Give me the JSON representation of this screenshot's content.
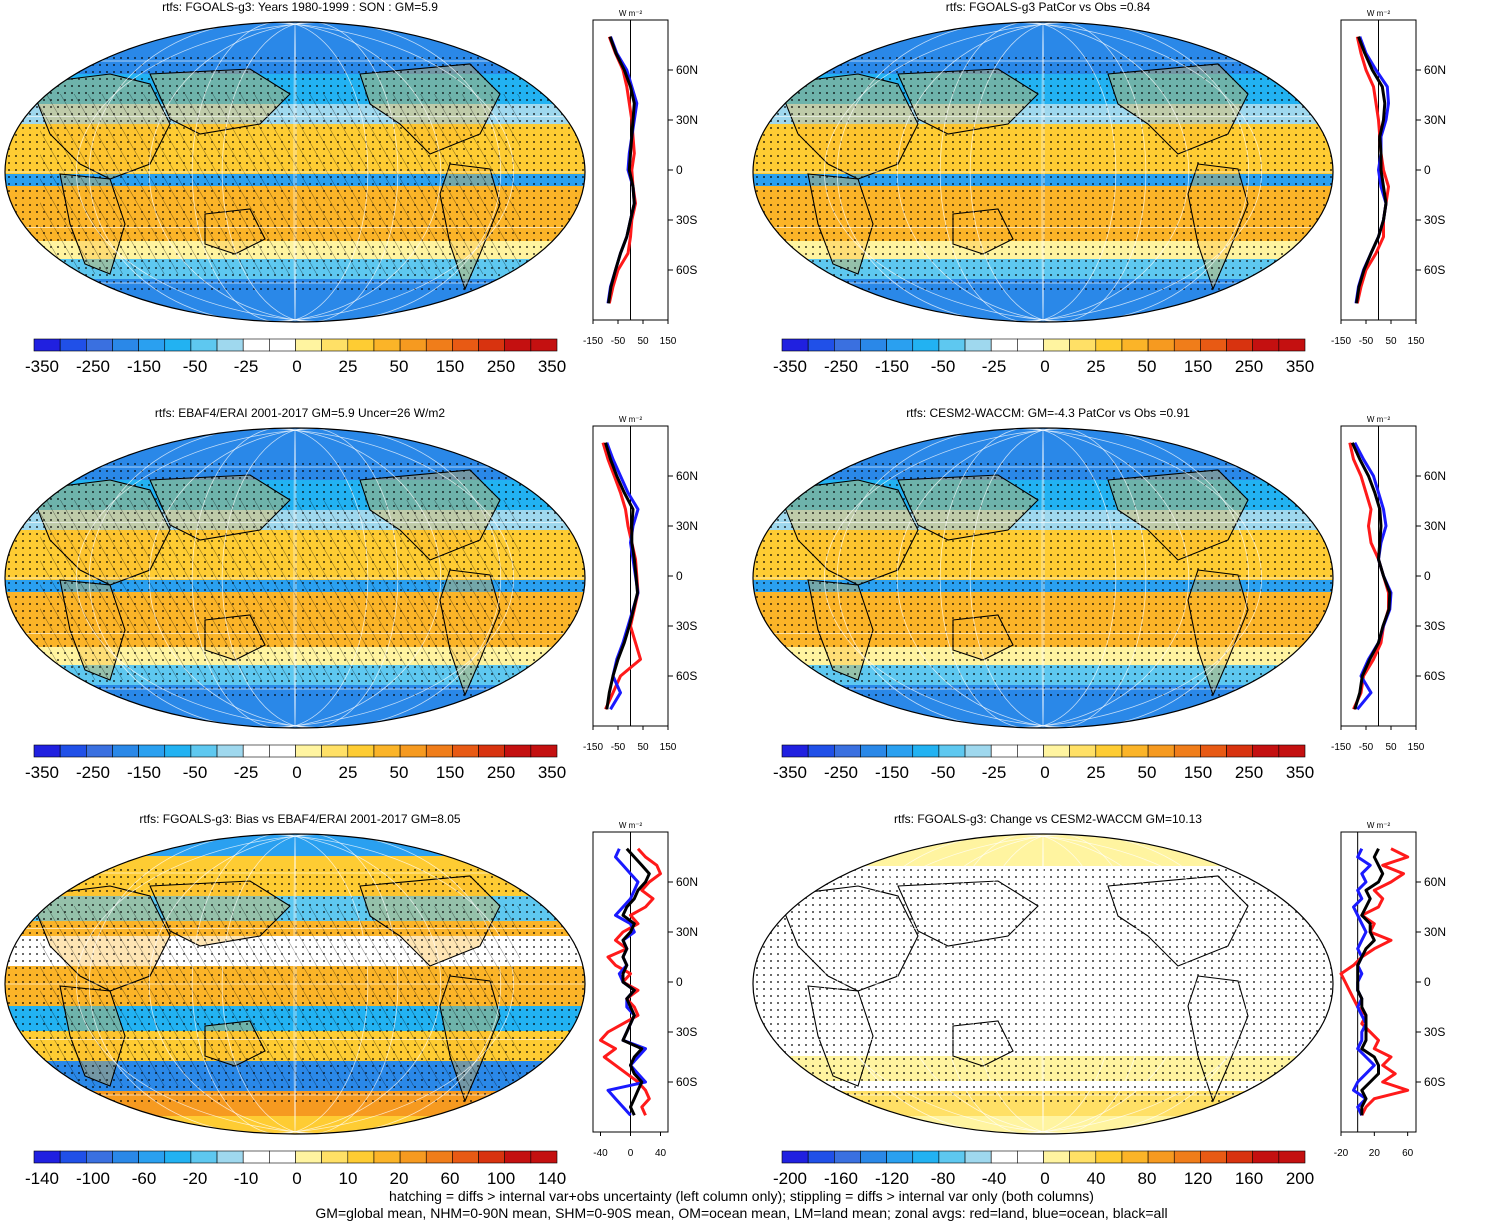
{
  "footnotes": [
    "hatching = diffs > internal var+obs uncertainty (left column only); stippling = diffs > internal var only (both columns)",
    "GM=global mean, NHM=0-90N mean, SHM=0-90S mean, OM=ocean mean, LM=land mean; zonal avgs: red=land, blue=ocean, black=all"
  ],
  "colors": {
    "land_line": "#ff1a1a",
    "ocean_line": "#1a1aff",
    "all_line": "#000000",
    "blues": [
      "#2020e0",
      "#2050e8",
      "#3a70e0",
      "#2a88e8",
      "#2aa0f0",
      "#22b2f2",
      "#5ec8f0",
      "#9fd8ee"
    ],
    "reds": [
      "#fff4a0",
      "#ffe066",
      "#fecc33",
      "#fbb428",
      "#f69a20",
      "#f07d1a",
      "#e85a14",
      "#d8330f",
      "#c41010"
    ]
  },
  "chart_data": [
    {
      "type": "heatmap",
      "title": "rtfs: FGOALS-g3: Years 1980-1999 : SON : GM=5.9",
      "colorbar_labels": [
        "-350",
        "-250",
        "-150",
        "-50",
        "-25",
        "0",
        "25",
        "50",
        "150",
        "250",
        "350"
      ],
      "zonal": {
        "type": "line",
        "units": "W m⁻²",
        "xticks": [
          "-150",
          "-50",
          "50",
          "150"
        ],
        "xlim": [
          -150,
          150
        ],
        "ylabels": [
          "60N",
          "30N",
          "0",
          "30S",
          "60S"
        ],
        "lat": [
          80,
          70,
          60,
          50,
          40,
          30,
          20,
          10,
          0,
          -10,
          -20,
          -30,
          -40,
          -50,
          -60,
          -70,
          -80
        ],
        "series": [
          {
            "name": "land",
            "values": [
              -85,
              -60,
              -30,
              -15,
              -5,
              5,
              10,
              15,
              5,
              10,
              20,
              5,
              0,
              -10,
              -50,
              -70,
              -85
            ]
          },
          {
            "name": "ocean",
            "values": [
              -80,
              -55,
              -15,
              5,
              25,
              15,
              5,
              -5,
              -10,
              10,
              15,
              0,
              -15,
              -40,
              -60,
              -80,
              -90
            ]
          },
          {
            "name": "all",
            "values": [
              -82,
              -58,
              -25,
              0,
              15,
              10,
              5,
              0,
              -5,
              10,
              15,
              0,
              -15,
              -40,
              -60,
              -78,
              -88
            ]
          }
        ]
      }
    },
    {
      "type": "heatmap",
      "title": "rtfs: FGOALS-g3 PatCor vs Obs =0.84",
      "colorbar_labels": [
        "-350",
        "-250",
        "-150",
        "-50",
        "-25",
        "0",
        "25",
        "50",
        "150",
        "250",
        "350"
      ],
      "zonal": {
        "type": "line",
        "units": "W m⁻²",
        "xticks": [
          "-150",
          "-50",
          "50",
          "150"
        ],
        "xlim": [
          -150,
          150
        ],
        "ylabels": [
          "60N",
          "30N",
          "0",
          "30S",
          "60S"
        ],
        "lat": [
          80,
          70,
          60,
          50,
          40,
          30,
          20,
          10,
          0,
          -10,
          -20,
          -30,
          -40,
          -50,
          -60,
          -70,
          -80
        ],
        "series": [
          {
            "name": "land",
            "values": [
              -85,
              -70,
              -50,
              -20,
              -10,
              0,
              5,
              10,
              20,
              40,
              30,
              20,
              20,
              -10,
              -50,
              -70,
              -85
            ]
          },
          {
            "name": "ocean",
            "values": [
              -75,
              -50,
              -10,
              35,
              40,
              30,
              10,
              10,
              0,
              10,
              30,
              20,
              0,
              -30,
              -60,
              -80,
              -90
            ]
          },
          {
            "name": "all",
            "values": [
              -80,
              -55,
              -25,
              15,
              25,
              20,
              5,
              10,
              10,
              20,
              30,
              20,
              0,
              -30,
              -58,
              -78,
              -88
            ]
          }
        ]
      }
    },
    {
      "type": "heatmap",
      "title": "rtfs: EBAF4/ERAI 2001-2017 GM=5.9 Uncer=26 W/m2",
      "colorbar_labels": [
        "-350",
        "-250",
        "-150",
        "-50",
        "-25",
        "0",
        "25",
        "50",
        "150",
        "250",
        "350"
      ],
      "zonal": {
        "type": "line",
        "units": "W m⁻²",
        "xticks": [
          "-150",
          "-50",
          "50",
          "150"
        ],
        "xlim": [
          -150,
          150
        ],
        "ylabels": [
          "60N",
          "30N",
          "0",
          "30S",
          "60S"
        ],
        "lat": [
          80,
          70,
          60,
          50,
          40,
          30,
          20,
          10,
          0,
          -10,
          -20,
          -30,
          -40,
          -50,
          -60,
          -70,
          -80
        ],
        "series": [
          {
            "name": "land",
            "values": [
              -110,
              -90,
              -65,
              -40,
              -20,
              -10,
              5,
              20,
              25,
              30,
              15,
              0,
              20,
              40,
              -40,
              -70,
              -100
            ]
          },
          {
            "name": "ocean",
            "values": [
              -95,
              -70,
              -40,
              -10,
              30,
              10,
              0,
              10,
              20,
              30,
              10,
              -10,
              -30,
              -55,
              -70,
              -40,
              -80
            ]
          },
          {
            "name": "all",
            "values": [
              -100,
              -80,
              -55,
              -25,
              10,
              5,
              5,
              15,
              22,
              28,
              12,
              -5,
              -25,
              -50,
              -70,
              -85,
              -95
            ]
          }
        ]
      }
    },
    {
      "type": "heatmap",
      "title": "rtfs: CESM2-WACCM: GM=-4.3 PatCor vs Obs =0.91",
      "colorbar_labels": [
        "-350",
        "-250",
        "-150",
        "-50",
        "-25",
        "0",
        "25",
        "50",
        "150",
        "250",
        "350"
      ],
      "zonal": {
        "type": "line",
        "units": "W m⁻²",
        "xticks": [
          "-150",
          "-50",
          "50",
          "150"
        ],
        "xlim": [
          -150,
          150
        ],
        "ylabels": [
          "60N",
          "30N",
          "0",
          "30S",
          "60S"
        ],
        "lat": [
          80,
          70,
          60,
          50,
          40,
          30,
          20,
          10,
          0,
          -10,
          -20,
          -30,
          -40,
          -50,
          -60,
          -70,
          -80
        ],
        "series": [
          {
            "name": "land",
            "values": [
              -115,
              -100,
              -70,
              -50,
              -30,
              -40,
              -30,
              0,
              20,
              40,
              40,
              20,
              10,
              -20,
              -60,
              -70,
              -100
            ]
          },
          {
            "name": "ocean",
            "values": [
              -95,
              -60,
              -20,
              0,
              20,
              30,
              10,
              0,
              20,
              50,
              45,
              20,
              0,
              -40,
              -70,
              -30,
              -85
            ]
          },
          {
            "name": "all",
            "values": [
              -105,
              -75,
              -40,
              -15,
              5,
              10,
              5,
              0,
              20,
              45,
              42,
              18,
              0,
              -35,
              -65,
              -75,
              -95
            ]
          }
        ]
      }
    },
    {
      "type": "heatmap",
      "title": "rtfs: FGOALS-g3: Bias vs EBAF4/ERAI 2001-2017  GM=8.05",
      "colorbar_labels": [
        "-140",
        "-100",
        "-60",
        "-20",
        "-10",
        "0",
        "10",
        "20",
        "60",
        "100",
        "140"
      ],
      "zonal": {
        "type": "line",
        "units": "W m⁻²",
        "xticks": [
          "-40",
          "0",
          "40"
        ],
        "xlim": [
          -50,
          50
        ],
        "ylabels": [
          "60N",
          "30N",
          "0",
          "30S",
          "60S"
        ],
        "lat": [
          80,
          75,
          70,
          65,
          60,
          55,
          50,
          45,
          40,
          35,
          30,
          25,
          20,
          15,
          10,
          5,
          0,
          -5,
          -10,
          -15,
          -20,
          -25,
          -30,
          -35,
          -40,
          -45,
          -50,
          -55,
          -60,
          -65,
          -70,
          -75,
          -80
        ],
        "series": [
          {
            "name": "land",
            "values": [
              10,
              20,
              35,
              40,
              25,
              15,
              30,
              20,
              0,
              10,
              -10,
              -20,
              -5,
              -30,
              -20,
              0,
              -10,
              10,
              -5,
              5,
              10,
              -10,
              -30,
              -40,
              -20,
              -35,
              -20,
              -5,
              10,
              20,
              25,
              15,
              20
            ]
          },
          {
            "name": "ocean",
            "values": [
              -15,
              -20,
              -10,
              0,
              10,
              5,
              0,
              -10,
              -20,
              0,
              5,
              -10,
              -5,
              -10,
              -5,
              -15,
              -10,
              5,
              -5,
              -5,
              5,
              0,
              -5,
              -10,
              20,
              10,
              0,
              10,
              20,
              -30,
              -20,
              -10,
              0
            ]
          },
          {
            "name": "all",
            "values": [
              -5,
              5,
              15,
              25,
              20,
              10,
              5,
              -5,
              -10,
              5,
              0,
              -10,
              -5,
              -10,
              -5,
              -10,
              -10,
              5,
              -5,
              0,
              5,
              0,
              -5,
              -10,
              15,
              5,
              0,
              5,
              15,
              10,
              5,
              0,
              5
            ]
          }
        ]
      }
    },
    {
      "type": "heatmap",
      "title": "rtfs: FGOALS-g3: Change vs CESM2-WACCM GM=10.13",
      "colorbar_labels": [
        "-200",
        "-160",
        "-120",
        "-80",
        "-40",
        "0",
        "40",
        "80",
        "120",
        "160",
        "200"
      ],
      "zonal": {
        "type": "line",
        "units": "W m⁻²",
        "xticks": [
          "-20",
          "20",
          "60"
        ],
        "xlim": [
          -20,
          70
        ],
        "ylabels": [
          "60N",
          "30N",
          "0",
          "30S",
          "60S"
        ],
        "lat": [
          80,
          75,
          70,
          65,
          60,
          55,
          50,
          45,
          40,
          35,
          30,
          25,
          20,
          15,
          10,
          5,
          0,
          -5,
          -10,
          -15,
          -20,
          -25,
          -30,
          -35,
          -40,
          -45,
          -50,
          -55,
          -60,
          -65,
          -70,
          -75,
          -80
        ],
        "series": [
          {
            "name": "land",
            "values": [
              40,
              60,
              30,
              55,
              40,
              20,
              30,
              25,
              5,
              20,
              15,
              40,
              20,
              5,
              -5,
              -20,
              -15,
              -10,
              -5,
              0,
              10,
              5,
              15,
              25,
              20,
              40,
              30,
              45,
              30,
              60,
              20,
              10,
              5
            ]
          },
          {
            "name": "ocean",
            "values": [
              5,
              0,
              15,
              5,
              10,
              0,
              5,
              -5,
              0,
              5,
              10,
              5,
              0,
              5,
              0,
              5,
              0,
              0,
              5,
              0,
              5,
              10,
              5,
              5,
              0,
              10,
              20,
              10,
              0,
              -5,
              10,
              0,
              5
            ]
          },
          {
            "name": "all",
            "values": [
              25,
              20,
              25,
              30,
              25,
              10,
              15,
              10,
              5,
              15,
              15,
              20,
              10,
              5,
              0,
              0,
              0,
              0,
              5,
              5,
              10,
              10,
              10,
              10,
              5,
              20,
              25,
              25,
              15,
              5,
              10,
              5,
              5
            ]
          }
        ]
      }
    }
  ]
}
